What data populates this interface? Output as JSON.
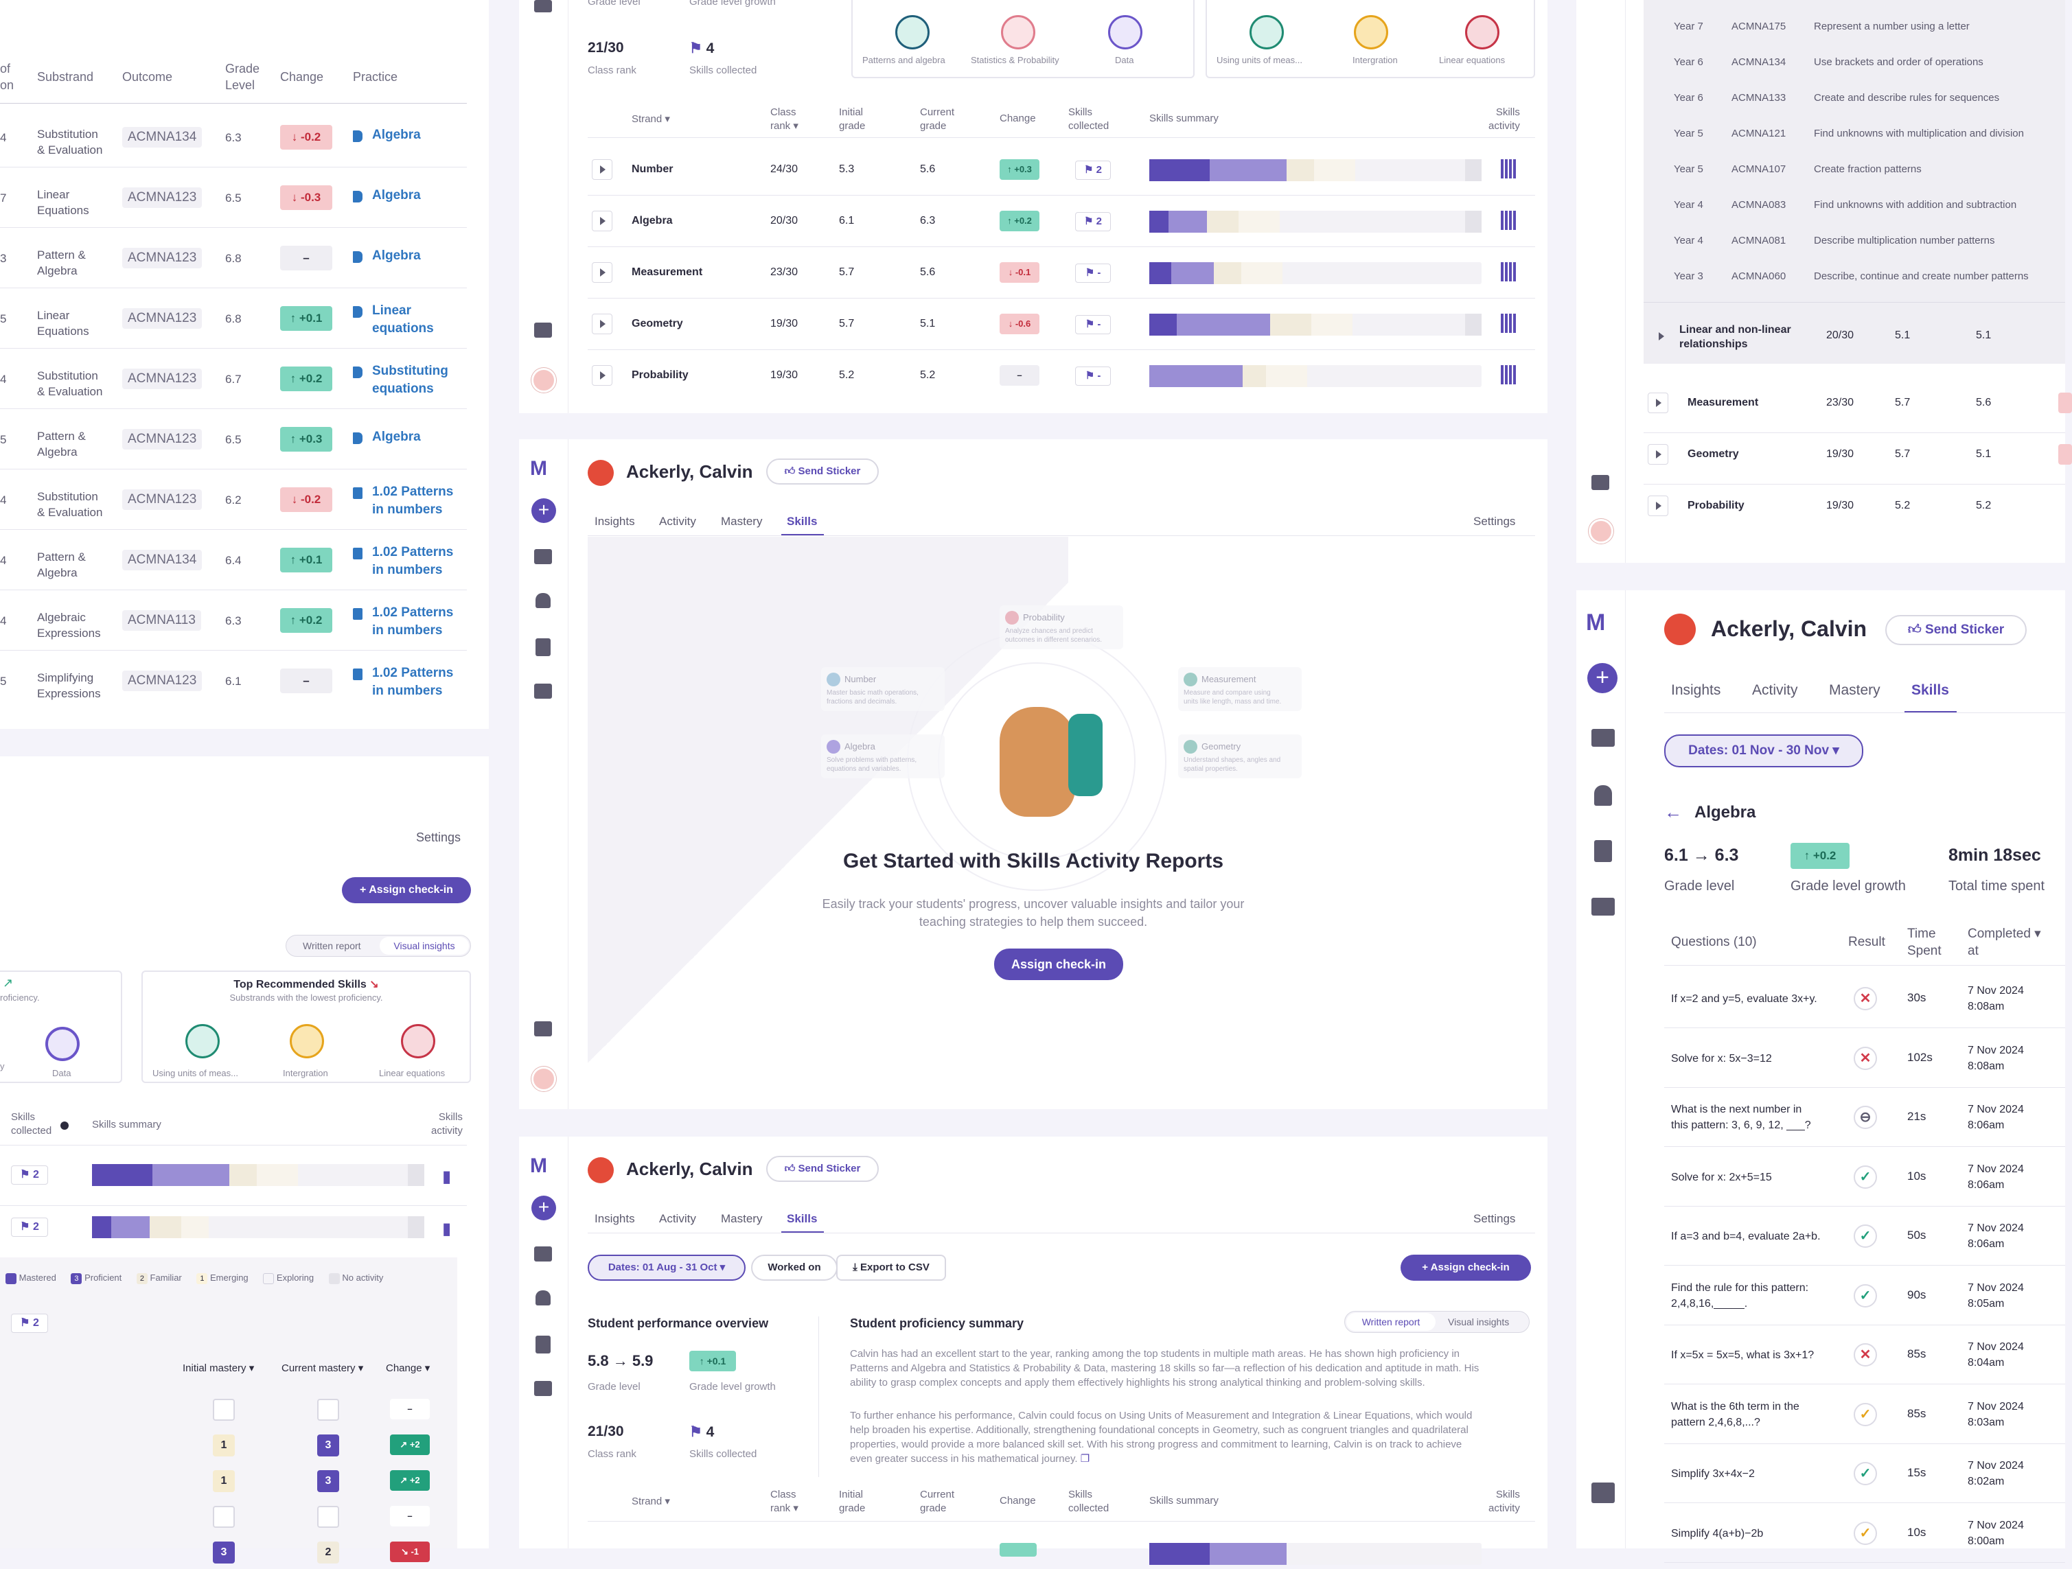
{
  "left_table": {
    "headers": [
      "of",
      "on",
      "Substrand",
      "Outcome",
      "Grade",
      "Level",
      "Change",
      "Practice"
    ],
    "rows": [
      {
        "num": "4",
        "sub": [
          "Substitution",
          "& Evaluation"
        ],
        "code": "ACMNA134",
        "grade": "6.3",
        "change": "↓ -0.2",
        "dir": "dn",
        "practice": [
          "Algebra"
        ],
        "icon": "flag-icon"
      },
      {
        "num": "7",
        "sub": [
          "Linear",
          "Equations"
        ],
        "code": "ACMNA123",
        "grade": "6.5",
        "change": "↓ -0.3",
        "dir": "dn",
        "practice": [
          "Algebra"
        ],
        "icon": "flag-icon"
      },
      {
        "num": "3",
        "sub": [
          "Pattern &",
          "Algebra"
        ],
        "code": "ACMNA123",
        "grade": "6.8",
        "change": "–",
        "dir": "eq",
        "practice": [
          "Algebra"
        ],
        "icon": "flag-icon"
      },
      {
        "num": "5",
        "sub": [
          "Linear",
          "Equations"
        ],
        "code": "ACMNA123",
        "grade": "6.8",
        "change": "↑ +0.1",
        "dir": "up",
        "practice": [
          "Linear",
          "equations"
        ],
        "icon": "flag-icon"
      },
      {
        "num": "4",
        "sub": [
          "Substitution",
          "& Evaluation"
        ],
        "code": "ACMNA123",
        "grade": "6.7",
        "change": "↑ +0.2",
        "dir": "up",
        "practice": [
          "Substituting",
          "equations"
        ],
        "icon": "flag-icon"
      },
      {
        "num": "5",
        "sub": [
          "Pattern &",
          "Algebra"
        ],
        "code": "ACMNA123",
        "grade": "6.5",
        "change": "↑ +0.3",
        "dir": "up",
        "practice": [
          "Algebra"
        ],
        "icon": "flag-icon"
      },
      {
        "num": "4",
        "sub": [
          "Substitution",
          "& Evaluation"
        ],
        "code": "ACMNA123",
        "grade": "6.2",
        "change": "↓ -0.2",
        "dir": "dn",
        "practice": [
          "1.02 Patterns",
          "in numbers"
        ],
        "icon": "doc-icon"
      },
      {
        "num": "4",
        "sub": [
          "Pattern &",
          "Algebra"
        ],
        "code": "ACMNA134",
        "grade": "6.4",
        "change": "↑ +0.1",
        "dir": "up",
        "practice": [
          "1.02 Patterns",
          "in numbers"
        ],
        "icon": "doc-icon"
      },
      {
        "num": "4",
        "sub": [
          "Algebraic",
          "Expressions"
        ],
        "code": "ACMNA113",
        "grade": "6.3",
        "change": "↑ +0.2",
        "dir": "up",
        "practice": [
          "1.02 Patterns",
          "in numbers"
        ],
        "icon": "doc-icon"
      },
      {
        "num": "5",
        "sub": [
          "Simplifying",
          "Expressions"
        ],
        "code": "ACMNA123",
        "grade": "6.1",
        "change": "–",
        "dir": "eq",
        "practice": [
          "1.02 Patterns",
          "in numbers"
        ],
        "icon": "doc-icon"
      }
    ]
  },
  "left_bottom": {
    "settings": "Settings",
    "assign": "Assign check-in",
    "written": "Written report",
    "visual": "Visual insights",
    "card_left_sub": "roficiency.",
    "card_left_y": "y",
    "data_label": "Data",
    "top_rec": "Top Recommended Skills",
    "top_rec_sub": "Substrands with the lowest proficiency.",
    "rec_skills": [
      "Using units of meas...",
      "Intergration",
      "Linear equations"
    ],
    "skills_collected": [
      "Skills",
      "collected"
    ],
    "skills_summary": "Skills summary",
    "skills_activity": [
      "Skills",
      "activity"
    ],
    "badge_2": "2",
    "legend": [
      "Mastered",
      "Proficient",
      "Familiar",
      "Emerging",
      "Exploring",
      "No activity"
    ],
    "legend_nums": [
      "3",
      "2",
      "1"
    ],
    "mastery_headers": [
      "Initial mastery",
      "Current mastery",
      "Change"
    ],
    "mastery_rows": [
      {
        "init": "",
        "cur": "",
        "chg": "–",
        "chgdir": "eq"
      },
      {
        "init": "1",
        "cur": "3",
        "chg": "↗ +2",
        "chgdir": "up"
      },
      {
        "init": "1",
        "cur": "3",
        "chg": "↗ +2",
        "chgdir": "up"
      },
      {
        "init": "",
        "cur": "",
        "chg": "–",
        "chgdir": "eq"
      },
      {
        "init": "3",
        "cur": "2",
        "chg": "↘ -1",
        "chgdir": "dn"
      }
    ]
  },
  "mid_top": {
    "grade_level": "Grade level",
    "grade_growth": "Grade level growth",
    "rank": "21/30",
    "rank_label": "Class rank",
    "skills": "4",
    "skills_label": "Skills collected",
    "card1": [
      "Patterns and algebra",
      "Statistics & Probability",
      "Data"
    ],
    "card2": [
      "Using units of meas...",
      "Intergration",
      "Linear equations"
    ],
    "headers": {
      "strand": "Strand",
      "rank": [
        "Class",
        "rank"
      ],
      "init": [
        "Initial",
        "grade"
      ],
      "cur": [
        "Current",
        "grade"
      ],
      "chg": "Change",
      "skills": [
        "Skills",
        "collected"
      ],
      "summary": "Skills summary",
      "activity": [
        "Skills",
        "activity"
      ]
    },
    "rows": [
      {
        "name": "Number",
        "rank": "24/30",
        "init": "5.3",
        "cur": "5.6",
        "chg": "↑ +0.3",
        "dir": "up",
        "sk": "2"
      },
      {
        "name": "Algebra",
        "rank": "20/30",
        "init": "6.1",
        "cur": "6.3",
        "chg": "↑ +0.2",
        "dir": "up",
        "sk": "2"
      },
      {
        "name": "Measurement",
        "rank": "23/30",
        "init": "5.7",
        "cur": "5.6",
        "chg": "↓ -0.1",
        "dir": "dn",
        "sk": "-"
      },
      {
        "name": "Geometry",
        "rank": "19/30",
        "init": "5.7",
        "cur": "5.1",
        "chg": "↓ -0.6",
        "dir": "dn",
        "sk": "-"
      },
      {
        "name": "Probability",
        "rank": "19/30",
        "init": "5.2",
        "cur": "5.2",
        "chg": "–",
        "dir": "eq",
        "sk": "-"
      }
    ]
  },
  "student": {
    "name": "Ackerly, Calvin",
    "sticker": "Send Sticker"
  },
  "tabs": [
    "Insights",
    "Activity",
    "Mastery",
    "Skills"
  ],
  "settings": "Settings",
  "empty": {
    "title": "Get Started with Skills Activity Reports",
    "desc": [
      "Easily track your students' progress, uncover valuable insights and tailor your",
      "teaching strategies to help them succeed."
    ],
    "button": "Assign check-in",
    "cards": [
      {
        "title": "Probability",
        "desc": [
          "Analyze chances and predict",
          "outcomes in different scenarios."
        ]
      },
      {
        "title": "Number",
        "desc": [
          "Master basic math operations,",
          "fractions and decimals."
        ]
      },
      {
        "title": "Measurement",
        "desc": [
          "Measure and compare using",
          "units like length, mass and time."
        ]
      },
      {
        "title": "Algebra",
        "desc": [
          "Solve problems with patterns,",
          "equations and variables."
        ]
      },
      {
        "title": "Geometry",
        "desc": [
          "Understand shapes, angles and",
          "spatial properties."
        ]
      }
    ]
  },
  "mid_bottom": {
    "dates": "Dates: 01 Aug - 31 Oct",
    "worked": "Worked on",
    "export": "Export to CSV",
    "assign": "Assign check-in",
    "overview": "Student performance overview",
    "grade_from": "5.8",
    "grade_to": "5.9",
    "growth": "↑ +0.1",
    "grade_level": "Grade level",
    "grade_growth": "Grade level growth",
    "rank": "21/30",
    "rank_label": "Class rank",
    "skills": "4",
    "skills_label": "Skills collected",
    "summary_title": "Student proficiency summary",
    "written": "Written report",
    "visual": "Visual insights",
    "para1": [
      "Calvin has had an excellent start to the year, ranking among the top students in multiple math areas. He has shown high proficiency in",
      "Patterns and Algebra and Statistics & Probability & Data, mastering 18 skills so far—a reflection of his dedication and aptitude in math. His",
      "ability to grasp complex concepts and apply them effectively highlights his strong analytical thinking and problem-solving skills."
    ],
    "para2": [
      "To further enhance his performance, Calvin could focus on Using Units of Measurement and Integration & Linear Equations, which would",
      "help broaden his expertise. Additionally, strengthening foundational concepts in Geometry, such as congruent triangles and quadrilateral",
      "properties, would provide a more balanced skill set. With his strong progress and commitment to learning, Calvin is on track to achieve",
      "even greater success in his mathematical journey."
    ]
  },
  "right_top": {
    "outcomes": [
      {
        "year": "Year 7",
        "code": "ACMNA175",
        "desc": "Represent a number using a letter"
      },
      {
        "year": "Year 6",
        "code": "ACMNA134",
        "desc": "Use brackets and order of operations"
      },
      {
        "year": "Year 6",
        "code": "ACMNA133",
        "desc": "Create and describe rules for sequences"
      },
      {
        "year": "Year 5",
        "code": "ACMNA121",
        "desc": "Find unknowns with multiplication and division"
      },
      {
        "year": "Year 5",
        "code": "ACMNA107",
        "desc": "Create fraction patterns"
      },
      {
        "year": "Year 4",
        "code": "ACMNA083",
        "desc": "Find unknowns with addition and subtraction"
      },
      {
        "year": "Year 4",
        "code": "ACMNA081",
        "desc": "Describe multiplication number patterns"
      },
      {
        "year": "Year 3",
        "code": "ACMNA060",
        "desc": "Describe, continue and create number patterns"
      }
    ],
    "linear": [
      "Linear and non-linear",
      "relationships"
    ],
    "linear_vals": [
      "20/30",
      "5.1",
      "5.1"
    ],
    "rows": [
      {
        "name": "Measurement",
        "rank": "23/30",
        "init": "5.7",
        "cur": "5.6"
      },
      {
        "name": "Geometry",
        "rank": "19/30",
        "init": "5.7",
        "cur": "5.1"
      },
      {
        "name": "Probability",
        "rank": "19/30",
        "init": "5.2",
        "cur": "5.2"
      }
    ]
  },
  "right_bottom": {
    "dates": "Dates: 01 Nov - 30 Nov",
    "back": "Algebra",
    "g_from": "6.1",
    "g_to": "6.3",
    "growth": "↑ +0.2",
    "time": "8min 18sec",
    "grade_level": "Grade level",
    "grade_growth": "Grade level growth",
    "time_label": "Total time spent",
    "headers": {
      "q": "Questions (10)",
      "result": "Result",
      "time": [
        "Time",
        "Spent"
      ],
      "completed": [
        "Completed",
        "at"
      ]
    },
    "questions": [
      {
        "q": [
          "If x=2 and y=5, evaluate 3x+y."
        ],
        "r": "wrong",
        "t": "30s",
        "d": [
          "7 Nov 2024",
          "8:08am"
        ]
      },
      {
        "q": [
          "Solve for x: 5x−3=12"
        ],
        "r": "wrong",
        "t": "102s",
        "d": [
          "7 Nov 2024",
          "8:08am"
        ]
      },
      {
        "q": [
          "What is the next number in",
          "this pattern: 3, 6, 9, 12, ___?"
        ],
        "r": "skip",
        "t": "21s",
        "d": [
          "7 Nov 2024",
          "8:06am"
        ]
      },
      {
        "q": [
          "Solve for x: 2x+5=15"
        ],
        "r": "right",
        "t": "10s",
        "d": [
          "7 Nov 2024",
          "8:06am"
        ]
      },
      {
        "q": [
          "If a=3 and b=4, evaluate 2a+b."
        ],
        "r": "right",
        "t": "50s",
        "d": [
          "7 Nov 2024",
          "8:06am"
        ]
      },
      {
        "q": [
          "Find the rule for this pattern:",
          "2,4,8,16,_____."
        ],
        "r": "right",
        "t": "90s",
        "d": [
          "7 Nov 2024",
          "8:05am"
        ]
      },
      {
        "q": [
          "If x=5x = 5x=5, what is 3x+1?"
        ],
        "r": "wrong",
        "t": "85s",
        "d": [
          "7 Nov 2024",
          "8:04am"
        ]
      },
      {
        "q": [
          "What is the 6th term in the",
          "pattern 2,4,6,8,...?"
        ],
        "r": "partial",
        "t": "85s",
        "d": [
          "7 Nov 2024",
          "8:03am"
        ]
      },
      {
        "q": [
          "Simplify 3x+4x−2"
        ],
        "r": "right",
        "t": "15s",
        "d": [
          "7 Nov 2024",
          "8:02am"
        ]
      },
      {
        "q": [
          "Simplify 4(a+b)−2b"
        ],
        "r": "partial",
        "t": "10s",
        "d": [
          "7 Nov 2024",
          "8:00am"
        ]
      }
    ]
  },
  "colors": {
    "brand": "#5b4bb4",
    "up": "#7fd6bf",
    "down": "#f6c9cc",
    "link": "#2f76c0"
  }
}
